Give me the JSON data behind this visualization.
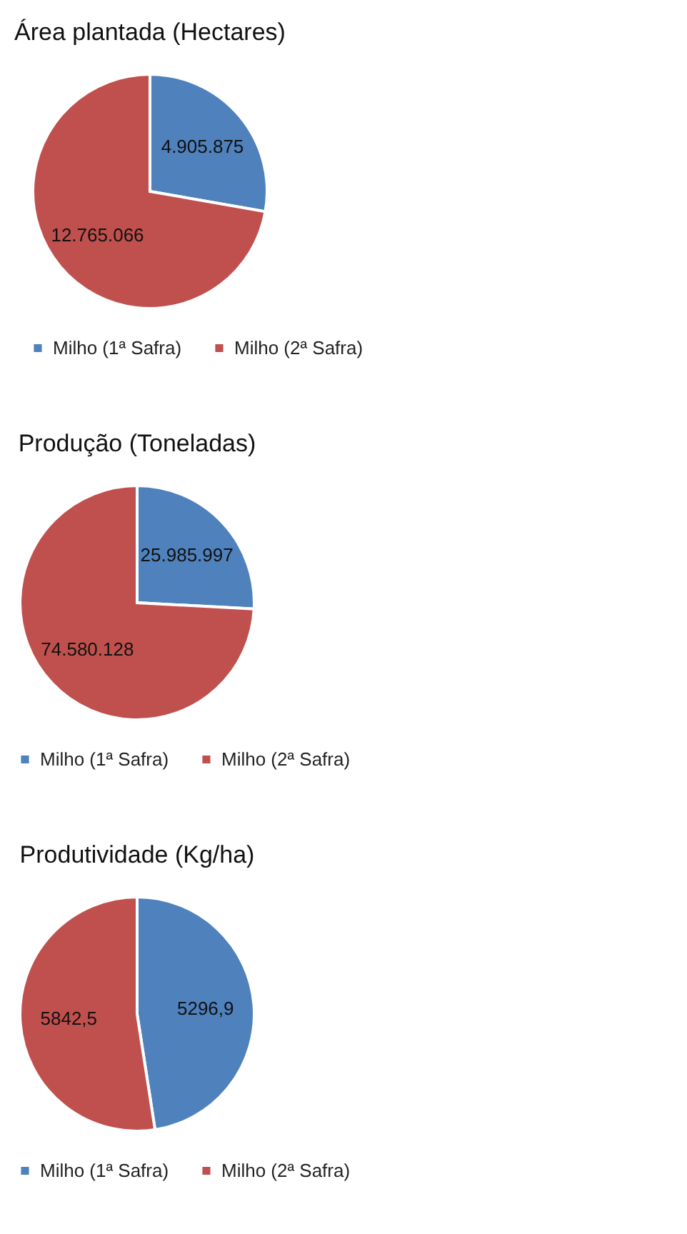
{
  "chart_data": [
    {
      "type": "pie",
      "title": "Área plantada (Hectares)",
      "categories": [
        "Milho (1ª Safra)",
        "Milho (2ª Safra)"
      ],
      "values": [
        4905875,
        12765066
      ],
      "value_labels": [
        "4.905.875",
        "12.765.066"
      ],
      "colors": [
        "#4f81bd",
        "#c0504d"
      ],
      "legend": "bottom"
    },
    {
      "type": "pie",
      "title": "Produção (Toneladas)",
      "categories": [
        "Milho (1ª Safra)",
        "Milho (2ª Safra)"
      ],
      "values": [
        25985997,
        74580128
      ],
      "value_labels": [
        "25.985.997",
        "74.580.128"
      ],
      "colors": [
        "#4f81bd",
        "#c0504d"
      ],
      "legend": "bottom"
    },
    {
      "type": "pie",
      "title": "Produtividade (Kg/ha)",
      "categories": [
        "Milho (1ª Safra)",
        "Milho (2ª Safra)"
      ],
      "values": [
        5296.9,
        5842.5
      ],
      "value_labels": [
        "5296,9",
        "5842,5"
      ],
      "colors": [
        "#4f81bd",
        "#c0504d"
      ],
      "legend": "bottom"
    }
  ]
}
